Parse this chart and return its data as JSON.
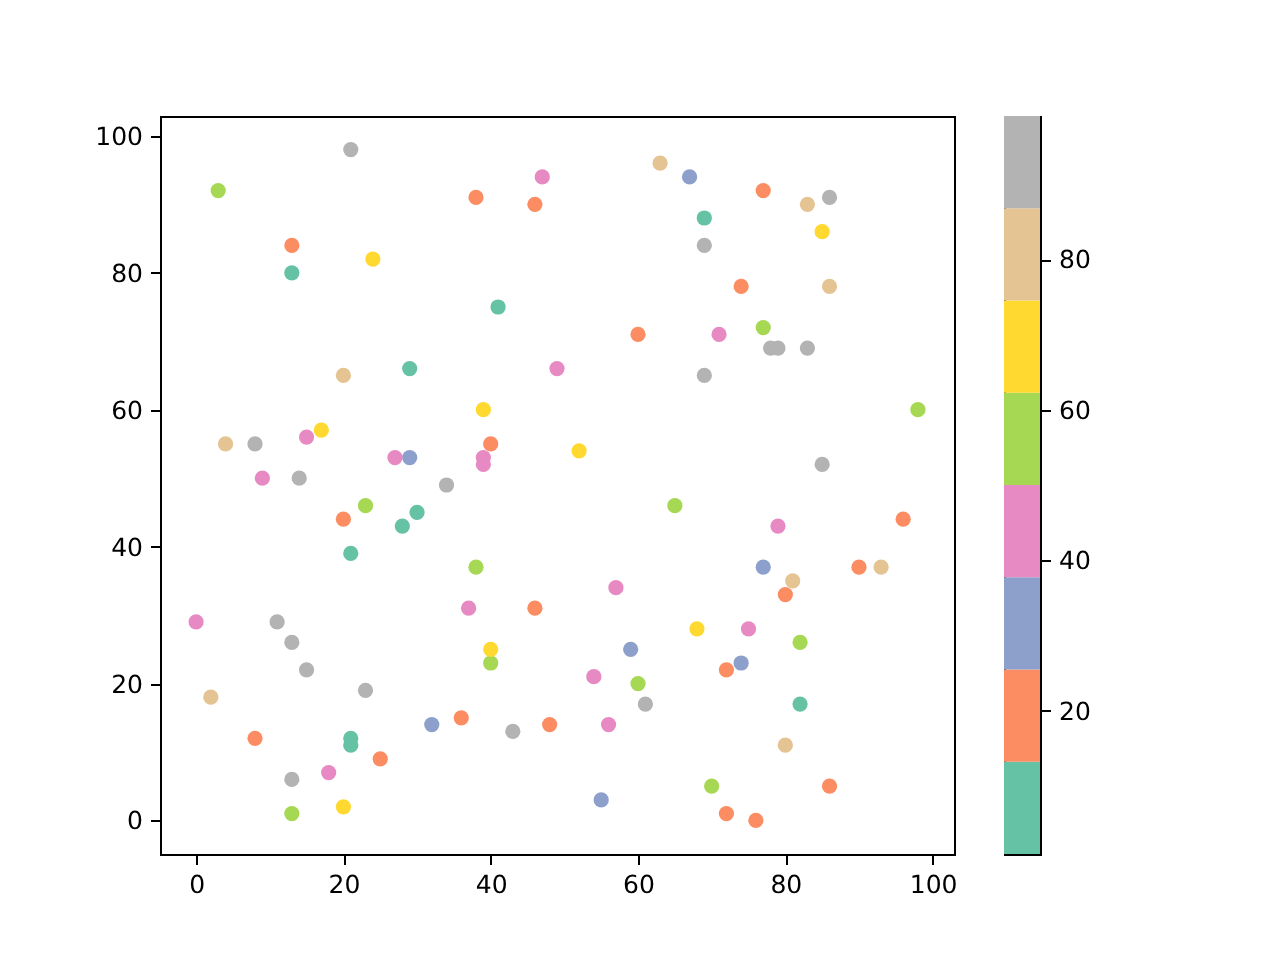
{
  "chart_data": {
    "type": "scatter",
    "series": [
      {
        "color": "#66c2a5",
        "x": [
          13,
          41,
          29,
          69,
          28,
          30,
          21,
          21,
          21,
          82
        ],
        "values": [
          80,
          75,
          66,
          88,
          43,
          45,
          39,
          12,
          11,
          17
        ]
      },
      {
        "color": "#fc8d62",
        "x": [
          13,
          38,
          46,
          40,
          77,
          74,
          60,
          20,
          8,
          25,
          46,
          36,
          48,
          96,
          90,
          80,
          72,
          86,
          72,
          76
        ],
        "values": [
          84,
          91,
          90,
          55,
          92,
          78,
          71,
          44,
          12,
          9,
          31,
          15,
          14,
          44,
          37,
          33,
          22,
          5,
          1,
          0
        ]
      },
      {
        "color": "#8da0cb",
        "x": [
          29,
          67,
          32,
          77,
          59,
          74,
          55
        ],
        "values": [
          53,
          94,
          14,
          37,
          25,
          23,
          3
        ]
      },
      {
        "color": "#e78ac3",
        "x": [
          47,
          49,
          15,
          9,
          27,
          39,
          39,
          71,
          0,
          18,
          37,
          79,
          57,
          75,
          54,
          56
        ],
        "values": [
          94,
          66,
          56,
          50,
          53,
          53,
          52,
          71,
          29,
          7,
          31,
          43,
          34,
          28,
          21,
          14
        ]
      },
      {
        "color": "#a6d854",
        "x": [
          3,
          77,
          98,
          23,
          38,
          13,
          40,
          65,
          82,
          60,
          70
        ],
        "values": [
          92,
          72,
          60,
          46,
          37,
          1,
          23,
          46,
          26,
          20,
          5
        ]
      },
      {
        "color": "#ffd92f",
        "x": [
          24,
          39,
          17,
          52,
          85,
          20,
          40,
          68
        ],
        "values": [
          82,
          60,
          57,
          54,
          86,
          2,
          25,
          28
        ]
      },
      {
        "color": "#e5c494",
        "x": [
          20,
          4,
          63,
          83,
          86,
          2,
          93,
          81,
          80
        ],
        "values": [
          65,
          55,
          96,
          90,
          78,
          18,
          37,
          35,
          11
        ]
      },
      {
        "color": "#b3b3b3",
        "x": [
          21,
          8,
          14,
          34,
          69,
          86,
          78,
          79,
          83,
          69,
          85,
          11,
          13,
          15,
          23,
          13,
          43,
          61
        ],
        "values": [
          98,
          55,
          50,
          49,
          84,
          91,
          69,
          69,
          69,
          65,
          52,
          29,
          26,
          22,
          19,
          6,
          13,
          17
        ]
      }
    ],
    "clim": [
      1,
      99
    ],
    "cticks": [
      20,
      40,
      60,
      80
    ],
    "xlim": [
      -4.9,
      102.9
    ],
    "ylim": [
      -4.9,
      102.9
    ],
    "xticks": [
      0,
      20,
      40,
      60,
      80,
      100
    ],
    "yticks": [
      0,
      20,
      40,
      60,
      80,
      100
    ],
    "marker": "circle"
  }
}
